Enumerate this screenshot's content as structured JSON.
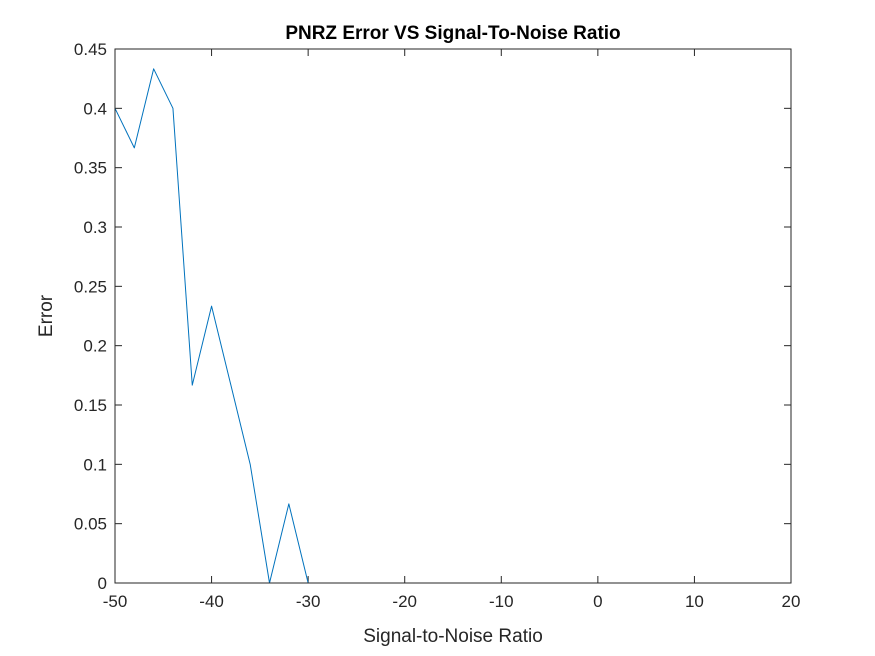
{
  "chart_data": {
    "type": "line",
    "title": "PNRZ Error VS Signal-To-Noise Ratio",
    "xlabel": "Signal-to-Noise Ratio",
    "ylabel": "Error",
    "xlim": [
      -50,
      20
    ],
    "ylim": [
      0,
      0.45
    ],
    "xticks": [
      -50,
      -40,
      -30,
      -20,
      -10,
      0,
      10,
      20
    ],
    "yticks": [
      0,
      0.05,
      0.1,
      0.15,
      0.2,
      0.25,
      0.3,
      0.35,
      0.4,
      0.45
    ],
    "xtick_labels": [
      "-50",
      "-40",
      "-30",
      "-20",
      "-10",
      "0",
      "10",
      "20"
    ],
    "ytick_labels": [
      "0",
      "0.05",
      "0.1",
      "0.15",
      "0.2",
      "0.25",
      "0.3",
      "0.35",
      "0.4",
      "0.45"
    ],
    "grid": false,
    "series": [
      {
        "color": "#0072bd",
        "x": [
          -50,
          -48,
          -46,
          -44,
          -42,
          -40,
          -38,
          -36,
          -34,
          -32,
          -30,
          -28,
          -26,
          -24,
          -22,
          -20,
          -18,
          -16,
          -14,
          -12,
          -10,
          -8,
          -6,
          -4,
          -2,
          0,
          2,
          4,
          6,
          8,
          10,
          12,
          14,
          16,
          18,
          20
        ],
        "values": [
          0.4,
          0.3667,
          0.4333,
          0.4,
          0.1667,
          0.2333,
          0.1667,
          0.1,
          0,
          0.0667,
          0,
          0,
          0,
          0,
          0,
          0,
          0,
          0,
          0,
          0,
          0,
          0,
          0,
          0,
          0,
          0,
          0,
          0,
          0,
          0,
          0,
          0,
          0,
          0,
          0,
          0
        ]
      }
    ]
  }
}
